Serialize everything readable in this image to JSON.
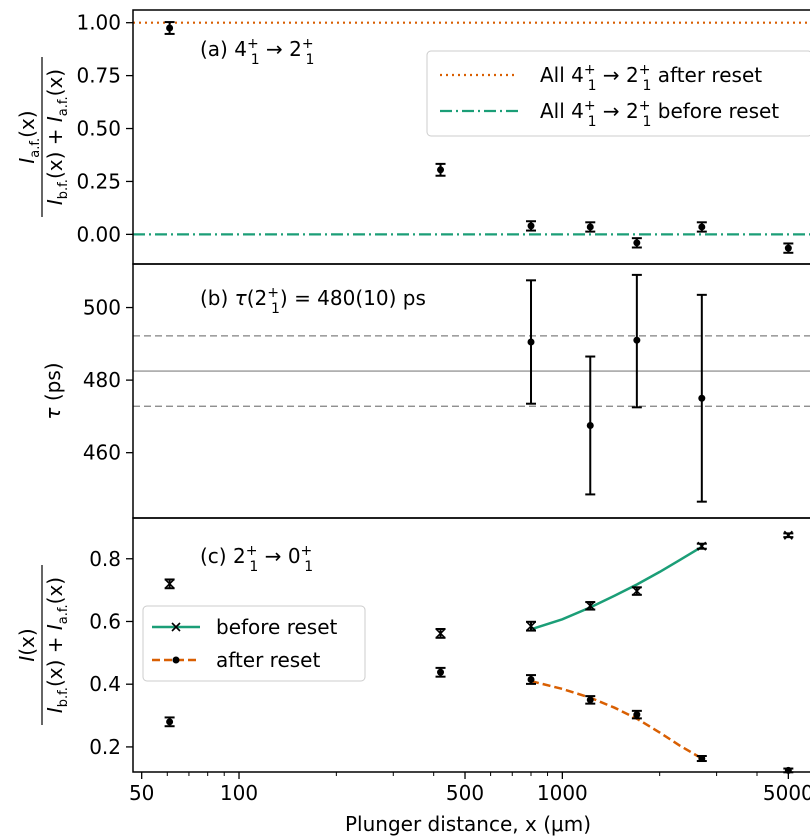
{
  "chart_data": [
    {
      "type": "scatter",
      "panel_label": "(a) 4₁⁺ → 2₁⁺",
      "ylabel_num": "I_a.f.(x)",
      "ylabel_den": "I_b.f.(x) + I_a.f.(x)",
      "xscale": "log",
      "xlim": [
        47,
        6400
      ],
      "ylim": [
        -0.14,
        1.06
      ],
      "yticks": [
        "0.00",
        "0.25",
        "0.50",
        "0.75",
        "1.00"
      ],
      "ytick_values": [
        0.0,
        0.25,
        0.5,
        0.75,
        1.0
      ],
      "reference_lines": [
        {
          "name": "All 4₁⁺ → 2₁⁺ after reset",
          "value": 1.0,
          "style": "dotted",
          "color": "#d95f02"
        },
        {
          "name": "All 4₁⁺ → 2₁⁺ before reset",
          "value": 0.0,
          "style": "dashdot",
          "color": "#1b9e77"
        }
      ],
      "legend_position": "upper right",
      "points": {
        "x": [
          61,
          420,
          800,
          1220,
          1700,
          2700,
          5000
        ],
        "y": [
          0.975,
          0.305,
          0.04,
          0.035,
          -0.04,
          0.035,
          -0.065
        ],
        "err": [
          0.028,
          0.028,
          0.022,
          0.022,
          0.022,
          0.022,
          0.022
        ]
      }
    },
    {
      "type": "scatter",
      "panel_label": "(b) τ(2₁⁺) = 480(10) ps",
      "ylabel": "τ (ps)",
      "xscale": "log",
      "xlim": [
        47,
        6400
      ],
      "ylim": [
        442,
        512
      ],
      "yticks": [
        "460",
        "480",
        "500"
      ],
      "ytick_values": [
        460,
        480,
        500
      ],
      "reference_lines": [
        {
          "value": 482.5,
          "style": "solid",
          "color": "#808080"
        },
        {
          "value": 492.2,
          "style": "dashed",
          "color": "#808080"
        },
        {
          "value": 472.8,
          "style": "dashed",
          "color": "#808080"
        }
      ],
      "points": {
        "x": [
          800,
          1220,
          1700,
          2700
        ],
        "y": [
          490.5,
          467.5,
          491.0,
          475.0
        ],
        "yerr_low": [
          17.0,
          19.0,
          18.5,
          28.5
        ],
        "yerr_high": [
          17.0,
          19.0,
          18.0,
          28.5
        ]
      }
    },
    {
      "type": "line",
      "panel_label": "(c) 2₁⁺ → 0₁⁺",
      "ylabel_num": "I(x)",
      "ylabel_den": "I_b.f.(x) + I_a.f.(x)",
      "xlabel": "Plunger distance, x (μm)",
      "xscale": "log",
      "xlim": [
        47,
        6400
      ],
      "ylim": [
        0.12,
        0.93
      ],
      "xticks": [
        "50",
        "100",
        "500",
        "1000",
        "5000"
      ],
      "xtick_values": [
        50,
        100,
        500,
        1000,
        5000
      ],
      "yticks": [
        "0.2",
        "0.4",
        "0.6",
        "0.8"
      ],
      "ytick_values": [
        0.2,
        0.4,
        0.6,
        0.8
      ],
      "legend_position": "center left",
      "series": [
        {
          "name": "before reset",
          "marker": "x",
          "color": "#1b9e77",
          "line_style": "solid",
          "x": [
            61,
            420,
            800,
            1220,
            1700,
            2700,
            5000
          ],
          "y": [
            0.72,
            0.562,
            0.585,
            0.65,
            0.697,
            0.84,
            0.875
          ],
          "err": [
            0.014,
            0.014,
            0.014,
            0.012,
            0.012,
            0.008,
            0.006
          ],
          "fit": {
            "x": [
              800,
              1000,
              1220,
              1450,
              1700,
              2000,
              2300,
              2700
            ],
            "y": [
              0.575,
              0.607,
              0.645,
              0.682,
              0.718,
              0.758,
              0.795,
              0.838
            ]
          }
        },
        {
          "name": "after reset",
          "marker": "o",
          "color": "#d95f02",
          "line_style": "dashed",
          "x": [
            61,
            420,
            800,
            1220,
            1700,
            2700,
            5000
          ],
          "y": [
            0.28,
            0.438,
            0.415,
            0.35,
            0.303,
            0.163,
            0.125
          ],
          "err": [
            0.014,
            0.014,
            0.014,
            0.012,
            0.012,
            0.008,
            0.006
          ],
          "fit": {
            "x": [
              800,
              1000,
              1220,
              1450,
              1700,
              2000,
              2300,
              2700
            ],
            "y": [
              0.41,
              0.385,
              0.357,
              0.325,
              0.29,
              0.246,
              0.205,
              0.163
            ]
          }
        }
      ]
    }
  ]
}
